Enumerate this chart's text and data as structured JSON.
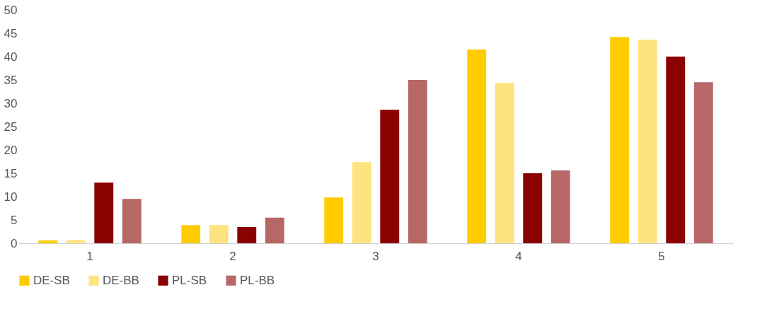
{
  "chart_data": {
    "type": "bar",
    "categories": [
      "1",
      "2",
      "3",
      "4",
      "5"
    ],
    "series": [
      {
        "name": "DE-SB",
        "color": "#ffcc00",
        "values": [
          0.6,
          3.9,
          9.8,
          41.5,
          44.2
        ]
      },
      {
        "name": "DE-BB",
        "color": "#ffe380",
        "values": [
          0.7,
          3.9,
          17.4,
          34.4,
          43.6
        ]
      },
      {
        "name": "PL-SB",
        "color": "#8b0000",
        "values": [
          13.0,
          3.5,
          28.6,
          15.0,
          40.0
        ]
      },
      {
        "name": "PL-BB",
        "color": "#b86767",
        "values": [
          9.5,
          5.5,
          35.0,
          15.6,
          34.5
        ]
      }
    ],
    "ylim": [
      0,
      50
    ],
    "yticks": [
      0,
      5,
      10,
      15,
      20,
      25,
      30,
      35,
      40,
      45,
      50
    ],
    "grid": false,
    "legend": "bottom"
  }
}
